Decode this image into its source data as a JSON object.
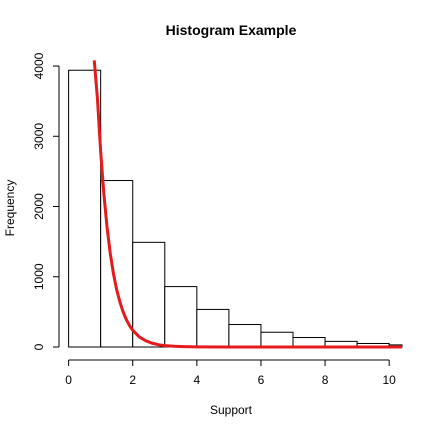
{
  "chart_data": {
    "type": "bar",
    "title": "Histogram Example",
    "xlabel": "Support",
    "ylabel": "Frequency",
    "xlim": [
      -0.3,
      10.4
    ],
    "ylim": [
      0,
      4100
    ],
    "x_ticks": [
      0,
      2,
      4,
      6,
      8,
      10
    ],
    "y_ticks": [
      0,
      1000,
      2000,
      3000,
      4000
    ],
    "bins": [
      {
        "start": 0,
        "end": 1,
        "count": 3940
      },
      {
        "start": 1,
        "end": 2,
        "count": 2370
      },
      {
        "start": 2,
        "end": 3,
        "count": 1490
      },
      {
        "start": 3,
        "end": 4,
        "count": 860
      },
      {
        "start": 4,
        "end": 5,
        "count": 535
      },
      {
        "start": 5,
        "end": 6,
        "count": 320
      },
      {
        "start": 6,
        "end": 7,
        "count": 210
      },
      {
        "start": 7,
        "end": 8,
        "count": 135
      },
      {
        "start": 8,
        "end": 9,
        "count": 80
      },
      {
        "start": 9,
        "end": 10,
        "count": 50
      },
      {
        "start": 10,
        "end": 11,
        "count": 30
      }
    ],
    "curve": {
      "color": "#e41a1c",
      "points": [
        [
          0.8,
          4080
        ],
        [
          0.9,
          3530
        ],
        [
          1.0,
          2780
        ],
        [
          1.1,
          2180
        ],
        [
          1.2,
          1700
        ],
        [
          1.3,
          1330
        ],
        [
          1.4,
          1040
        ],
        [
          1.5,
          815
        ],
        [
          1.6,
          640
        ],
        [
          1.7,
          500
        ],
        [
          1.8,
          390
        ],
        [
          1.9,
          305
        ],
        [
          2.0,
          240
        ],
        [
          2.2,
          145
        ],
        [
          2.4,
          90
        ],
        [
          2.6,
          55
        ],
        [
          2.8,
          33
        ],
        [
          3.0,
          20
        ],
        [
          3.3,
          10
        ],
        [
          3.6,
          5
        ],
        [
          4.0,
          2
        ],
        [
          5.0,
          0
        ],
        [
          6.0,
          0
        ],
        [
          7.0,
          0
        ],
        [
          8.0,
          0
        ],
        [
          9.0,
          0
        ],
        [
          10.4,
          0
        ]
      ]
    },
    "colors": {
      "bar_fill": "#ffffff",
      "bar_stroke": "#000000"
    },
    "grid": false
  }
}
